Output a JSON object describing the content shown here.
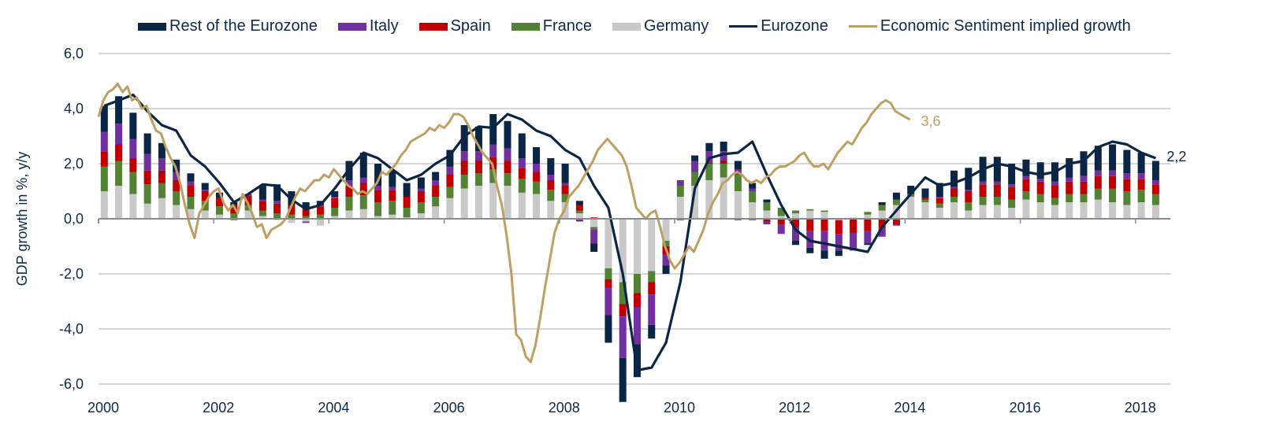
{
  "chart_data": {
    "type": "bar",
    "subtype": "stacked-bar-with-lines",
    "title": "",
    "ylabel": "GDP growth in %, y/y",
    "xlabel": "",
    "ylim": [
      -6,
      6
    ],
    "yticks": [
      "6,0",
      "4,0",
      "2,0",
      "0,0",
      "-2,0",
      "-4,0",
      "-6,0"
    ],
    "ytick_values": [
      6,
      4,
      2,
      0,
      -2,
      -4,
      -6
    ],
    "xticks": [
      "2000",
      "2002",
      "2004",
      "2006",
      "2008",
      "2010",
      "2012",
      "2014",
      "2016",
      "2018"
    ],
    "xtick_values": [
      2000,
      2002,
      2004,
      2006,
      2008,
      2010,
      2012,
      2014,
      2016,
      2018
    ],
    "xlim": [
      2000,
      2019
    ],
    "grid": true,
    "legend_position": "top",
    "colors": {
      "Rest of the Eurozone": "#0b2545",
      "Italy": "#7030a0",
      "Spain": "#c00000",
      "France": "#548235",
      "Germany": "#c9c9c9",
      "Eurozone": "#0b2545",
      "Economic Sentiment implied growth": "#bf9f62",
      "axis_text": "#0d2a4a",
      "grid": "#bfbfbf"
    },
    "legend": [
      {
        "label": "Rest of the Eurozone",
        "kind": "bar"
      },
      {
        "label": "Italy",
        "kind": "bar"
      },
      {
        "label": "Spain",
        "kind": "bar"
      },
      {
        "label": "France",
        "kind": "bar"
      },
      {
        "label": "Germany",
        "kind": "bar"
      },
      {
        "label": "Eurozone",
        "kind": "line"
      },
      {
        "label": "Economic Sentiment implied growth",
        "kind": "line"
      }
    ],
    "quarters_start": 2000.0,
    "quarter_step": 0.25,
    "series": [
      {
        "name": "Germany",
        "type": "bar",
        "values": [
          1.0,
          1.2,
          0.9,
          0.55,
          0.75,
          0.5,
          0.35,
          0.3,
          0.15,
          0.0,
          0.3,
          0.1,
          -0.05,
          -0.15,
          -0.1,
          -0.25,
          0.1,
          0.3,
          0.35,
          0.1,
          0.15,
          0.05,
          0.2,
          0.45,
          0.75,
          1.1,
          1.2,
          1.3,
          1.2,
          0.95,
          0.9,
          0.65,
          0.6,
          0.2,
          -0.3,
          -1.8,
          -2.3,
          -2.0,
          -1.9,
          -0.8,
          0.8,
          1.2,
          1.4,
          1.5,
          1.0,
          0.6,
          0.3,
          0.1,
          0.2,
          0.3,
          0.25,
          -0.05,
          0.05,
          0.15,
          0.3,
          0.5,
          0.8,
          0.6,
          0.4,
          0.6,
          0.3,
          0.5,
          0.5,
          0.4,
          0.7,
          0.6,
          0.5,
          0.6,
          0.6,
          0.7,
          0.6,
          0.5,
          0.6,
          0.5
        ]
      },
      {
        "name": "France",
        "type": "bar",
        "values": [
          0.9,
          0.9,
          0.8,
          0.7,
          0.55,
          0.5,
          0.45,
          0.35,
          0.3,
          0.2,
          0.2,
          0.2,
          0.2,
          0.15,
          0.1,
          0.15,
          0.3,
          0.5,
          0.5,
          0.5,
          0.5,
          0.35,
          0.4,
          0.35,
          0.4,
          0.5,
          0.45,
          0.5,
          0.45,
          0.5,
          0.45,
          0.4,
          0.3,
          0.1,
          -0.1,
          -0.4,
          -0.8,
          -0.7,
          -0.4,
          -0.2,
          0.4,
          0.5,
          0.6,
          0.5,
          0.6,
          0.4,
          0.3,
          0.3,
          0.1,
          0.05,
          0.05,
          0.0,
          0.0,
          0.1,
          0.2,
          0.2,
          0.1,
          0.1,
          0.15,
          0.2,
          0.3,
          0.3,
          0.3,
          0.3,
          0.3,
          0.3,
          0.25,
          0.3,
          0.3,
          0.4,
          0.5,
          0.5,
          0.45,
          0.4
        ]
      },
      {
        "name": "Spain",
        "type": "bar",
        "values": [
          0.55,
          0.6,
          0.5,
          0.5,
          0.45,
          0.4,
          0.4,
          0.35,
          0.3,
          0.3,
          0.35,
          0.35,
          0.35,
          0.35,
          0.3,
          0.3,
          0.35,
          0.4,
          0.45,
          0.45,
          0.4,
          0.4,
          0.4,
          0.4,
          0.45,
          0.5,
          0.45,
          0.45,
          0.45,
          0.4,
          0.35,
          0.35,
          0.3,
          0.2,
          0.05,
          -0.3,
          -0.45,
          -0.5,
          -0.45,
          -0.3,
          -0.05,
          0.0,
          0.05,
          0.1,
          -0.05,
          -0.05,
          -0.1,
          -0.2,
          -0.3,
          -0.45,
          -0.45,
          -0.5,
          -0.5,
          -0.45,
          -0.35,
          -0.2,
          0.0,
          0.05,
          0.2,
          0.3,
          0.4,
          0.45,
          0.45,
          0.45,
          0.45,
          0.45,
          0.45,
          0.45,
          0.45,
          0.45,
          0.45,
          0.45,
          0.4,
          0.35
        ]
      },
      {
        "name": "Italy",
        "type": "bar",
        "values": [
          0.7,
          0.75,
          0.7,
          0.6,
          0.45,
          0.3,
          0.15,
          0.05,
          0.0,
          -0.05,
          0.05,
          0.05,
          0.1,
          0.0,
          -0.05,
          0.05,
          0.05,
          0.2,
          0.2,
          0.15,
          0.1,
          0.0,
          0.1,
          0.2,
          0.3,
          0.35,
          0.35,
          0.45,
          0.45,
          0.35,
          0.3,
          0.2,
          0.1,
          -0.1,
          -0.5,
          -1.0,
          -1.5,
          -1.35,
          -1.1,
          -0.4,
          0.2,
          0.4,
          0.4,
          0.35,
          0.2,
          0.1,
          -0.1,
          -0.35,
          -0.5,
          -0.6,
          -0.7,
          -0.6,
          -0.55,
          -0.45,
          -0.3,
          -0.05,
          0.0,
          0.0,
          0.05,
          0.05,
          0.05,
          0.1,
          0.1,
          0.1,
          0.1,
          0.1,
          0.15,
          0.15,
          0.2,
          0.2,
          0.2,
          0.2,
          0.2,
          0.15
        ]
      },
      {
        "name": "Rest of the Eurozone",
        "type": "bar",
        "values": [
          0.95,
          1.0,
          0.95,
          0.75,
          0.55,
          0.45,
          0.3,
          0.25,
          0.2,
          0.1,
          0.0,
          0.5,
          0.6,
          0.5,
          0.2,
          0.15,
          0.2,
          0.7,
          0.9,
          0.8,
          0.6,
          0.5,
          0.4,
          0.3,
          0.6,
          0.95,
          0.9,
          1.1,
          1.0,
          0.9,
          0.6,
          0.6,
          0.7,
          0.15,
          -0.3,
          -1.0,
          -1.6,
          -1.2,
          -0.5,
          -0.3,
          0.0,
          0.2,
          0.3,
          0.35,
          0.3,
          0.2,
          0.1,
          0.0,
          -0.15,
          -0.2,
          -0.3,
          -0.2,
          -0.1,
          -0.05,
          0.1,
          0.25,
          0.3,
          0.35,
          0.5,
          0.6,
          0.8,
          0.9,
          0.9,
          0.75,
          0.6,
          0.6,
          0.7,
          0.7,
          0.9,
          0.9,
          0.95,
          0.85,
          0.75,
          0.7
        ]
      },
      {
        "name": "Eurozone",
        "type": "line",
        "values": [
          4.1,
          4.3,
          4.5,
          3.9,
          3.4,
          3.2,
          2.3,
          1.9,
          1.3,
          0.6,
          0.9,
          1.25,
          1.2,
          0.7,
          0.35,
          0.5,
          1.1,
          1.8,
          2.4,
          2.2,
          1.8,
          1.4,
          1.6,
          2.0,
          2.3,
          3.0,
          3.35,
          3.3,
          3.8,
          3.6,
          3.2,
          3.0,
          2.5,
          2.2,
          1.2,
          0.4,
          -2.0,
          -5.5,
          -5.4,
          -4.5,
          -2.3,
          1.1,
          2.2,
          2.35,
          2.4,
          2.8,
          1.6,
          0.5,
          -0.4,
          -0.8,
          -0.9,
          -1.0,
          -1.1,
          -1.2,
          -0.3,
          0.3,
          0.9,
          1.5,
          1.2,
          1.3,
          1.5,
          1.8,
          2.0,
          1.9,
          1.7,
          1.6,
          1.7,
          2.0,
          2.1,
          2.6,
          2.8,
          2.7,
          2.4,
          2.2
        ]
      },
      {
        "name": "Economic Sentiment implied growth",
        "type": "line",
        "step": "monthly",
        "values": [
          3.7,
          4.3,
          4.6,
          4.7,
          4.9,
          4.6,
          4.8,
          4.3,
          4.4,
          4.0,
          4.1,
          3.6,
          3.2,
          3.1,
          2.6,
          2.2,
          1.9,
          1.3,
          0.5,
          -0.2,
          -0.7,
          0.2,
          0.5,
          0.8,
          1.0,
          1.1,
          0.6,
          0.3,
          0.5,
          0.2,
          0.9,
          0.6,
          0.2,
          -0.3,
          -0.2,
          -0.7,
          -0.4,
          -0.3,
          -0.2,
          0.0,
          0.4,
          0.8,
          1.1,
          1.0,
          1.2,
          1.4,
          1.4,
          1.6,
          1.5,
          1.8,
          1.6,
          1.4,
          1.2,
          1.1,
          0.9,
          1.0,
          0.9,
          1.1,
          1.3,
          1.7,
          1.6,
          1.8,
          2.0,
          2.3,
          2.5,
          2.8,
          2.9,
          3.0,
          3.1,
          3.3,
          3.2,
          3.4,
          3.3,
          3.5,
          3.8,
          3.8,
          3.7,
          3.4,
          3.0,
          2.7,
          2.4,
          2.2,
          2.0,
          1.2,
          0.5,
          -0.6,
          -2.0,
          -4.2,
          -4.4,
          -5.0,
          -5.2,
          -4.6,
          -3.6,
          -2.5,
          -1.5,
          -0.5,
          0.0,
          0.3,
          0.8,
          1.0,
          1.2,
          1.5,
          1.8,
          2.1,
          2.5,
          2.7,
          2.9,
          2.7,
          2.5,
          2.3,
          1.9,
          1.2,
          0.4,
          0.2,
          0.0,
          0.2,
          0.3,
          -0.3,
          -1.0,
          -1.5,
          -1.8,
          -1.6,
          -1.3,
          -1.0,
          -1.2,
          -0.8,
          -0.4,
          0.2,
          0.6,
          0.9,
          1.3,
          1.4,
          1.6,
          1.7,
          1.6,
          1.4,
          1.3,
          1.4,
          1.3,
          1.5,
          1.6,
          1.8,
          1.9,
          1.9,
          2.0,
          2.1,
          2.3,
          2.4,
          2.1,
          1.9,
          1.9,
          2.0,
          1.8,
          2.1,
          2.4,
          2.6,
          2.8,
          2.7,
          3.0,
          3.3,
          3.5,
          3.8,
          4.0,
          4.2,
          4.3,
          4.2,
          3.9,
          3.8,
          3.7,
          3.6
        ]
      }
    ],
    "end_labels": [
      {
        "series": "Economic Sentiment implied growth",
        "text": "3,6"
      },
      {
        "series": "Eurozone",
        "text": "2,2"
      }
    ]
  }
}
